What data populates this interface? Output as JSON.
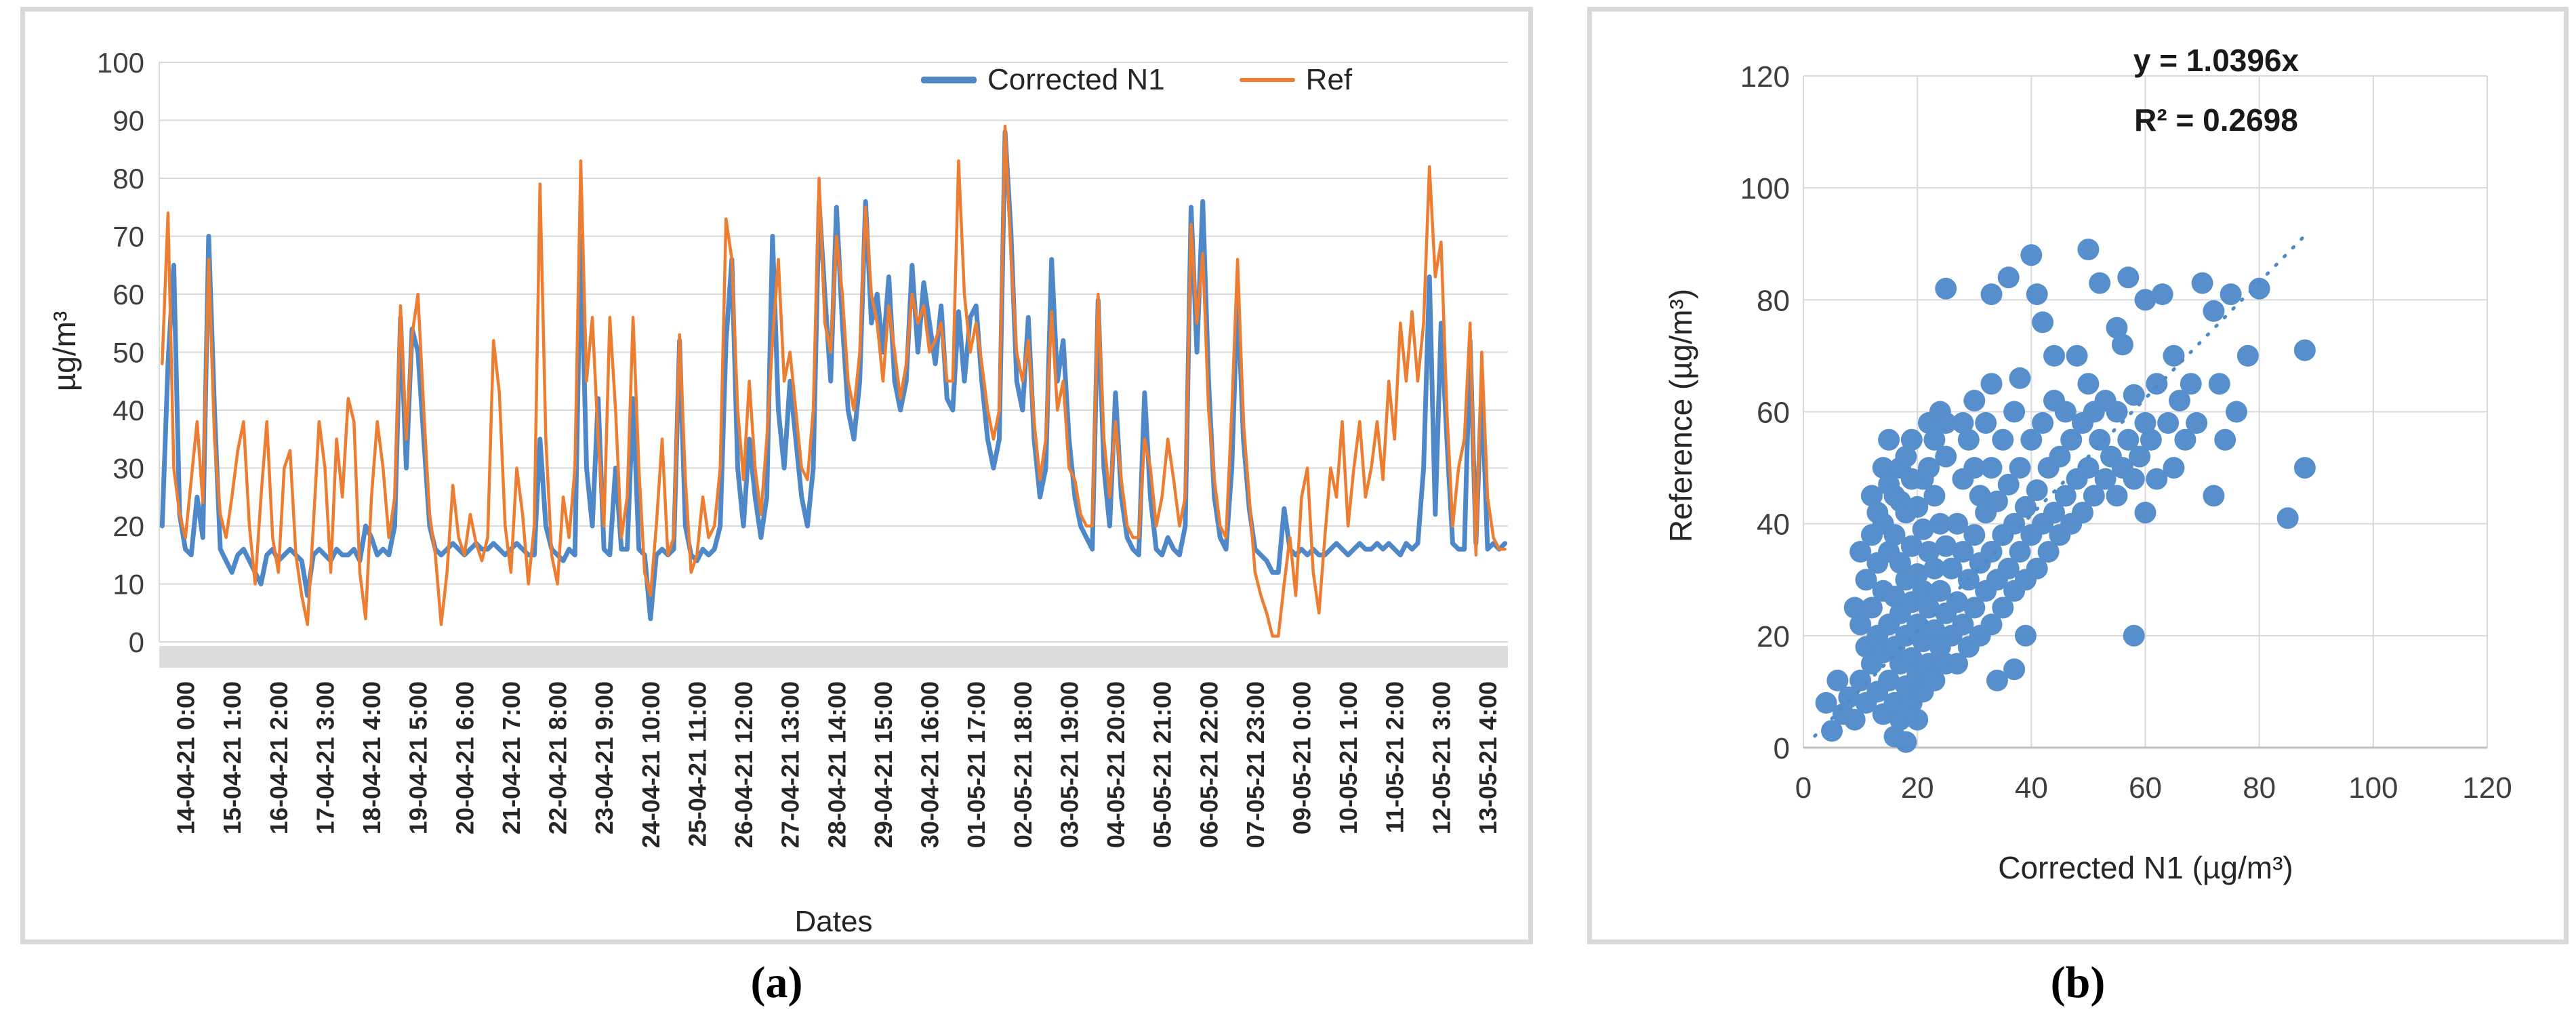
{
  "figure": {
    "caption_a": "(a)",
    "caption_b": "(b)",
    "colors": {
      "blue": "#4E88C8",
      "orange": "#ED7D31",
      "grid": "#D9D9D9",
      "axis_band": "#DCDCDC",
      "tick_text": "#3F3F3F",
      "label_text": "#262626"
    }
  },
  "chart_data": [
    {
      "id": "a",
      "type": "line",
      "ylabel": "µg/m³",
      "xlabel": "Dates",
      "ylim": [
        0,
        100
      ],
      "ytick": 10,
      "grid": "horizontal",
      "legend_position": "top-right-inside",
      "legend": [
        {
          "name": "Corrected N1",
          "color": "#4E88C8"
        },
        {
          "name": "Ref",
          "color": "#ED7D31"
        }
      ],
      "categories": [
        "14-04-21 0:00",
        "15-04-21 1:00",
        "16-04-21 2:00",
        "17-04-21 3:00",
        "18-04-21 4:00",
        "19-04-21 5:00",
        "20-04-21 6:00",
        "21-04-21 7:00",
        "22-04-21 8:00",
        "23-04-21 9:00",
        "24-04-21 10:00",
        "25-04-21 11:00",
        "26-04-21 12:00",
        "27-04-21 13:00",
        "28-04-21 14:00",
        "29-04-21 15:00",
        "30-04-21 16:00",
        "01-05-21 17:00",
        "02-05-21 18:00",
        "03-05-21 19:00",
        "04-05-21 20:00",
        "05-05-21 21:00",
        "06-05-21 22:00",
        "07-05-21 23:00",
        "09-05-21 0:00",
        "10-05-21 1:00",
        "11-05-21 2:00",
        "12-05-21 3:00",
        "13-05-21 4:00"
      ],
      "points_per_category": 8,
      "series": [
        {
          "name": "Corrected N1",
          "color": "#4E88C8",
          "width": 7,
          "values": [
            20,
            48,
            65,
            22,
            16,
            15,
            25,
            18,
            70,
            40,
            16,
            14,
            12,
            15,
            16,
            14,
            12,
            10,
            15,
            16,
            14,
            15,
            16,
            15,
            14,
            8,
            15,
            16,
            15,
            14,
            16,
            15,
            15,
            16,
            14,
            20,
            18,
            15,
            16,
            15,
            20,
            56,
            30,
            54,
            50,
            35,
            20,
            16,
            15,
            16,
            17,
            16,
            15,
            16,
            17,
            16,
            16,
            17,
            16,
            15,
            16,
            17,
            16,
            15,
            15,
            35,
            20,
            16,
            15,
            14,
            16,
            15,
            70,
            30,
            20,
            42,
            16,
            15,
            30,
            16,
            16,
            42,
            16,
            15,
            4,
            15,
            16,
            15,
            16,
            52,
            20,
            15,
            14,
            16,
            15,
            16,
            20,
            52,
            66,
            30,
            20,
            35,
            25,
            18,
            25,
            70,
            40,
            30,
            45,
            35,
            25,
            20,
            30,
            76,
            60,
            45,
            75,
            55,
            40,
            35,
            45,
            76,
            55,
            60,
            50,
            63,
            45,
            40,
            45,
            65,
            50,
            62,
            55,
            48,
            58,
            42,
            40,
            57,
            45,
            56,
            58,
            45,
            35,
            30,
            35,
            88,
            71,
            45,
            40,
            56,
            35,
            25,
            30,
            66,
            45,
            52,
            35,
            25,
            20,
            18,
            16,
            59,
            30,
            20,
            43,
            25,
            18,
            16,
            15,
            43,
            25,
            16,
            15,
            18,
            16,
            15,
            20,
            75,
            50,
            76,
            45,
            25,
            18,
            16,
            30,
            60,
            35,
            23,
            16,
            15,
            14,
            12,
            12,
            23,
            16,
            15,
            16,
            15,
            16,
            15,
            15,
            16,
            17,
            16,
            15,
            16,
            17,
            16,
            16,
            17,
            16,
            17,
            16,
            15,
            17,
            16,
            17,
            30,
            63,
            22,
            55,
            35,
            17,
            16,
            16,
            52,
            17,
            44,
            16,
            17,
            16,
            17
          ]
        },
        {
          "name": "Ref",
          "color": "#ED7D31",
          "width": 4.5,
          "values": [
            48,
            74,
            30,
            22,
            18,
            28,
            38,
            24,
            66,
            35,
            22,
            18,
            25,
            33,
            38,
            20,
            10,
            25,
            38,
            18,
            12,
            30,
            33,
            15,
            8,
            3,
            20,
            38,
            30,
            12,
            35,
            25,
            42,
            38,
            12,
            4,
            25,
            38,
            30,
            18,
            25,
            58,
            35,
            53,
            60,
            40,
            22,
            15,
            3,
            12,
            27,
            18,
            15,
            22,
            17,
            14,
            18,
            52,
            43,
            20,
            12,
            30,
            22,
            10,
            20,
            79,
            35,
            15,
            10,
            25,
            18,
            30,
            83,
            45,
            56,
            35,
            20,
            56,
            40,
            18,
            25,
            56,
            30,
            12,
            8,
            20,
            35,
            15,
            18,
            53,
            28,
            12,
            15,
            25,
            18,
            20,
            30,
            73,
            66,
            40,
            28,
            45,
            30,
            22,
            35,
            52,
            66,
            45,
            50,
            40,
            30,
            28,
            40,
            80,
            55,
            50,
            70,
            60,
            45,
            40,
            50,
            75,
            60,
            55,
            45,
            58,
            50,
            42,
            48,
            60,
            55,
            58,
            50,
            52,
            55,
            45,
            45,
            83,
            60,
            50,
            55,
            48,
            40,
            35,
            40,
            89,
            67,
            50,
            45,
            52,
            38,
            28,
            35,
            57,
            40,
            45,
            30,
            28,
            22,
            20,
            20,
            60,
            35,
            25,
            38,
            28,
            20,
            18,
            18,
            35,
            30,
            20,
            25,
            35,
            28,
            20,
            25,
            72,
            55,
            67,
            40,
            28,
            20,
            18,
            40,
            66,
            38,
            25,
            12,
            8,
            5,
            1,
            1,
            10,
            18,
            8,
            25,
            30,
            12,
            5,
            18,
            30,
            25,
            38,
            20,
            30,
            38,
            25,
            30,
            38,
            28,
            45,
            35,
            55,
            45,
            57,
            45,
            55,
            82,
            63,
            69,
            40,
            20,
            30,
            35,
            55,
            15,
            50,
            25,
            18,
            16,
            16
          ]
        }
      ]
    },
    {
      "id": "b",
      "type": "scatter",
      "xlabel": "Corrected N1 (µg/m³)",
      "ylabel": "Reference (µg/m³)",
      "xlim": [
        0,
        120
      ],
      "ylim": [
        0,
        120
      ],
      "xtick": 20,
      "ytick": 20,
      "grid": "both",
      "marker_color": "#4E8AC9",
      "annotation": {
        "line1": "y = 1.0396x",
        "line2": "R² = 0.2698"
      },
      "trendline": {
        "slope": 1.0396,
        "x_start": 2,
        "x_end": 88,
        "style": "dotted",
        "color": "#4E8AC9"
      },
      "points": [
        [
          4,
          8
        ],
        [
          5,
          3
        ],
        [
          6,
          12
        ],
        [
          7,
          6
        ],
        [
          8,
          9
        ],
        [
          9,
          5
        ],
        [
          9,
          25
        ],
        [
          10,
          12
        ],
        [
          10,
          22
        ],
        [
          10,
          35
        ],
        [
          11,
          8
        ],
        [
          11,
          18
        ],
        [
          11,
          30
        ],
        [
          12,
          15
        ],
        [
          12,
          25
        ],
        [
          12,
          38
        ],
        [
          12,
          45
        ],
        [
          13,
          10
        ],
        [
          13,
          20
        ],
        [
          13,
          33
        ],
        [
          13,
          42
        ],
        [
          14,
          6
        ],
        [
          14,
          17
        ],
        [
          14,
          28
        ],
        [
          14,
          40
        ],
        [
          14,
          50
        ],
        [
          15,
          12
        ],
        [
          15,
          22
        ],
        [
          15,
          35
        ],
        [
          15,
          47
        ],
        [
          15,
          55
        ],
        [
          16,
          2
        ],
        [
          16,
          8
        ],
        [
          16,
          18
        ],
        [
          16,
          27
        ],
        [
          16,
          38
        ],
        [
          16,
          45
        ],
        [
          17,
          5
        ],
        [
          17,
          15
        ],
        [
          17,
          24
        ],
        [
          17,
          33
        ],
        [
          17,
          44
        ],
        [
          17,
          50
        ],
        [
          18,
          1
        ],
        [
          18,
          11
        ],
        [
          18,
          20
        ],
        [
          18,
          30
        ],
        [
          18,
          42
        ],
        [
          18,
          52
        ],
        [
          19,
          8
        ],
        [
          19,
          16
        ],
        [
          19,
          26
        ],
        [
          19,
          36
        ],
        [
          19,
          48
        ],
        [
          19,
          55
        ],
        [
          20,
          5
        ],
        [
          20,
          13
        ],
        [
          20,
          22
        ],
        [
          20,
          31
        ],
        [
          20,
          43
        ],
        [
          21,
          10
        ],
        [
          21,
          19
        ],
        [
          21,
          28
        ],
        [
          21,
          39
        ],
        [
          21,
          48
        ],
        [
          22,
          15
        ],
        [
          22,
          25
        ],
        [
          22,
          35
        ],
        [
          22,
          50
        ],
        [
          22,
          58
        ],
        [
          23,
          12
        ],
        [
          23,
          21
        ],
        [
          23,
          32
        ],
        [
          23,
          45
        ],
        [
          23,
          55
        ],
        [
          24,
          18
        ],
        [
          24,
          28
        ],
        [
          24,
          40
        ],
        [
          24,
          60
        ],
        [
          25,
          15
        ],
        [
          25,
          24
        ],
        [
          25,
          36
        ],
        [
          25,
          52
        ],
        [
          25,
          58
        ],
        [
          25,
          82
        ],
        [
          26,
          20
        ],
        [
          26,
          32
        ],
        [
          27,
          15
        ],
        [
          27,
          26
        ],
        [
          27,
          40
        ],
        [
          28,
          22
        ],
        [
          28,
          35
        ],
        [
          28,
          48
        ],
        [
          28,
          58
        ],
        [
          29,
          18
        ],
        [
          29,
          30
        ],
        [
          29,
          55
        ],
        [
          30,
          25
        ],
        [
          30,
          38
        ],
        [
          30,
          50
        ],
        [
          30,
          62
        ],
        [
          31,
          20
        ],
        [
          31,
          33
        ],
        [
          31,
          45
        ],
        [
          32,
          28
        ],
        [
          32,
          42
        ],
        [
          32,
          58
        ],
        [
          33,
          22
        ],
        [
          33,
          35
        ],
        [
          33,
          50
        ],
        [
          33,
          65
        ],
        [
          33,
          81
        ],
        [
          34,
          12
        ],
        [
          34,
          30
        ],
        [
          34,
          44
        ],
        [
          35,
          25
        ],
        [
          35,
          38
        ],
        [
          35,
          55
        ],
        [
          36,
          32
        ],
        [
          36,
          47
        ],
        [
          36,
          84
        ],
        [
          37,
          14
        ],
        [
          37,
          28
        ],
        [
          37,
          40
        ],
        [
          37,
          60
        ],
        [
          38,
          35
        ],
        [
          38,
          50
        ],
        [
          38,
          66
        ],
        [
          39,
          20
        ],
        [
          39,
          30
        ],
        [
          39,
          43
        ],
        [
          40,
          38
        ],
        [
          40,
          55
        ],
        [
          40,
          88
        ],
        [
          41,
          32
        ],
        [
          41,
          46
        ],
        [
          41,
          81
        ],
        [
          42,
          40
        ],
        [
          42,
          58
        ],
        [
          42,
          76
        ],
        [
          43,
          35
        ],
        [
          43,
          50
        ],
        [
          44,
          42
        ],
        [
          44,
          62
        ],
        [
          44,
          70
        ],
        [
          45,
          38
        ],
        [
          45,
          52
        ],
        [
          46,
          45
        ],
        [
          46,
          60
        ],
        [
          47,
          40
        ],
        [
          47,
          55
        ],
        [
          48,
          48
        ],
        [
          48,
          70
        ],
        [
          49,
          42
        ],
        [
          49,
          58
        ],
        [
          50,
          50
        ],
        [
          50,
          65
        ],
        [
          50,
          89
        ],
        [
          51,
          45
        ],
        [
          51,
          60
        ],
        [
          52,
          55
        ],
        [
          52,
          83
        ],
        [
          53,
          48
        ],
        [
          53,
          62
        ],
        [
          54,
          52
        ],
        [
          55,
          45
        ],
        [
          55,
          60
        ],
        [
          55,
          75
        ],
        [
          56,
          50
        ],
        [
          56,
          72
        ],
        [
          57,
          55
        ],
        [
          57,
          84
        ],
        [
          58,
          20
        ],
        [
          58,
          48
        ],
        [
          58,
          63
        ],
        [
          59,
          52
        ],
        [
          60,
          42
        ],
        [
          60,
          58
        ],
        [
          60,
          80
        ],
        [
          61,
          55
        ],
        [
          62,
          48
        ],
        [
          62,
          65
        ],
        [
          63,
          81
        ],
        [
          64,
          58
        ],
        [
          65,
          50
        ],
        [
          65,
          70
        ],
        [
          66,
          62
        ],
        [
          67,
          55
        ],
        [
          68,
          65
        ],
        [
          69,
          58
        ],
        [
          70,
          83
        ],
        [
          72,
          45
        ],
        [
          72,
          78
        ],
        [
          73,
          65
        ],
        [
          74,
          55
        ],
        [
          75,
          81
        ],
        [
          76,
          60
        ],
        [
          78,
          70
        ],
        [
          80,
          82
        ],
        [
          85,
          41
        ],
        [
          88,
          50
        ],
        [
          88,
          71
        ]
      ]
    }
  ]
}
